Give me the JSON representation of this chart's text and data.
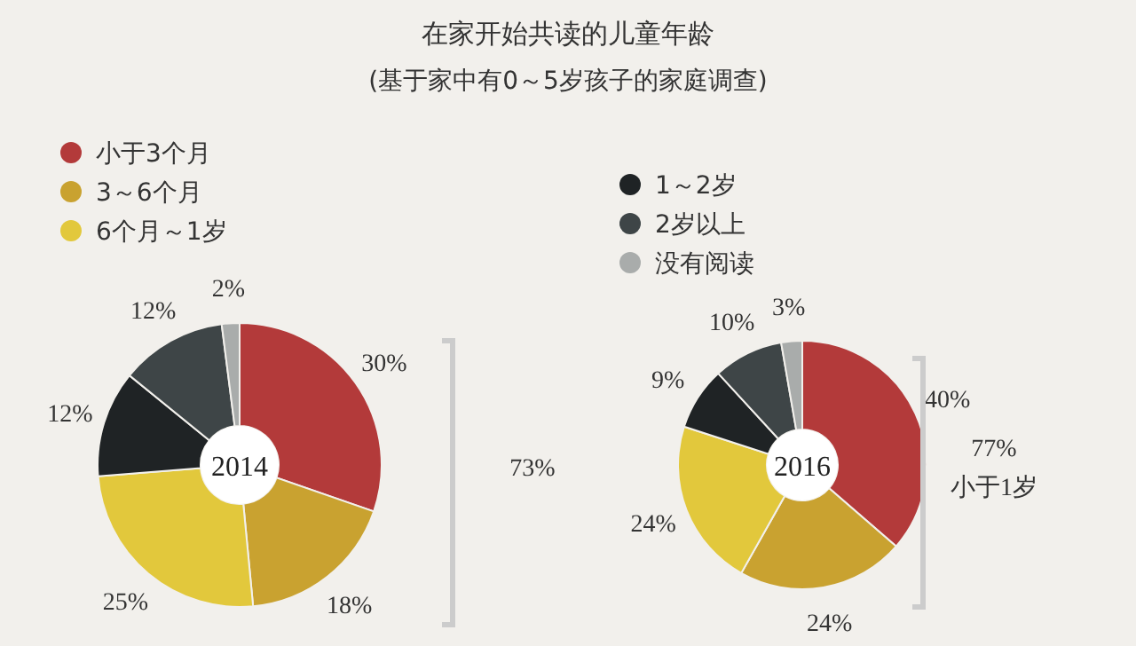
{
  "chart_data": [
    {
      "type": "donut",
      "title": "在家开始共读的儿童年龄",
      "subtitle": "(基于家中有0～5岁孩子的家庭调查)",
      "categories": [
        "小于3个月",
        "3～6个月",
        "6个月～1岁",
        null,
        null,
        null
      ],
      "values": [
        30,
        18,
        25,
        12,
        12,
        2
      ],
      "value_labels": [
        "30%",
        "18%",
        "25%",
        "12%",
        "12%",
        "2%"
      ],
      "colors": [
        "#b33a3a",
        "#c9a230",
        "#e2c83c",
        "#1f2325",
        "#3e4547",
        "#a9acab"
      ],
      "legend": "top left",
      "annotations": [
        "2014",
        "73%"
      ]
    },
    {
      "type": "donut",
      "categories": [
        null,
        null,
        null,
        "1～2岁",
        "2岁以上",
        "没有阅读"
      ],
      "values": [
        40,
        24,
        24,
        9,
        10,
        3
      ],
      "value_labels": [
        "40%",
        "24%",
        "24%",
        "9%",
        "10%",
        "3%"
      ],
      "colors": [
        "#b33a3a",
        "#c9a230",
        "#e2c83c",
        "#1f2325",
        "#3e4547",
        "#a9acab"
      ],
      "legend": "top left",
      "annotations": [
        "2016",
        "77%",
        "小于1岁"
      ]
    }
  ]
}
